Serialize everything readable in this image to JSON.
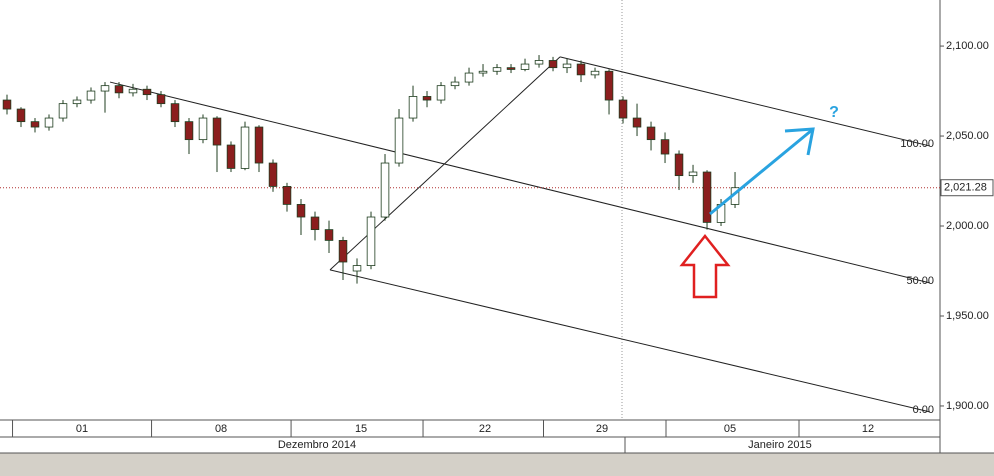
{
  "chart_data": {
    "type": "candlestick",
    "x": [
      0,
      1,
      2,
      3,
      4,
      5,
      6,
      7,
      8,
      9,
      10,
      11,
      12,
      13,
      14,
      15,
      16,
      17,
      18,
      19,
      20,
      21,
      22,
      23,
      24,
      25,
      26,
      27,
      28,
      29,
      30,
      31,
      32,
      33,
      34,
      35,
      36,
      37,
      38,
      39,
      40,
      41,
      42,
      43,
      44,
      45,
      46,
      47,
      48,
      49,
      50,
      51,
      52
    ],
    "open": [
      2070,
      2065,
      2058,
      2055,
      2060,
      2068,
      2070,
      2075,
      2078,
      2074,
      2076,
      2073,
      2068,
      2058,
      2048,
      2060,
      2045,
      2032,
      2055,
      2035,
      2022,
      2012,
      2005,
      1998,
      1992,
      1975,
      1978,
      2005,
      2035,
      2060,
      2072,
      2070,
      2078,
      2080,
      2085,
      2086,
      2088,
      2087,
      2090,
      2092,
      2088,
      2090,
      2084,
      2086,
      2070,
      2060,
      2055,
      2048,
      2040,
      2028,
      2030,
      2002,
      2012
    ],
    "high": [
      2073,
      2066,
      2060,
      2062,
      2070,
      2072,
      2077,
      2080,
      2080,
      2079,
      2078,
      2075,
      2070,
      2060,
      2062,
      2061,
      2047,
      2058,
      2056,
      2037,
      2024,
      2015,
      2008,
      2003,
      1994,
      1982,
      2008,
      2040,
      2065,
      2078,
      2075,
      2080,
      2083,
      2088,
      2090,
      2090,
      2090,
      2093,
      2095,
      2094,
      2093,
      2092,
      2088,
      2087,
      2072,
      2068,
      2058,
      2052,
      2042,
      2034,
      2031,
      2015,
      2030
    ],
    "low": [
      2062,
      2055,
      2052,
      2053,
      2058,
      2066,
      2068,
      2063,
      2071,
      2072,
      2070,
      2066,
      2055,
      2040,
      2046,
      2030,
      2030,
      2031,
      2030,
      2019,
      2008,
      1995,
      1992,
      1985,
      1970,
      1968,
      1976,
      2003,
      2033,
      2058,
      2066,
      2068,
      2076,
      2078,
      2083,
      2084,
      2085,
      2086,
      2088,
      2086,
      2085,
      2080,
      2082,
      2062,
      2057,
      2050,
      2042,
      2035,
      2020,
      2024,
      1998,
      2000,
      2010
    ],
    "close": [
      2065,
      2058,
      2055,
      2060,
      2068,
      2070,
      2075,
      2078,
      2074,
      2076,
      2073,
      2068,
      2058,
      2048,
      2060,
      2045,
      2032,
      2055,
      2035,
      2022,
      2012,
      2005,
      1998,
      1992,
      1980,
      1978,
      2005,
      2035,
      2060,
      2072,
      2070,
      2078,
      2080,
      2085,
      2086,
      2088,
      2087,
      2090,
      2092,
      2088,
      2090,
      2084,
      2086,
      2070,
      2060,
      2055,
      2048,
      2040,
      2028,
      2030,
      2002,
      2012,
      2021.28
    ],
    "up_color": "#ffffff",
    "down_color": "#8b1e1e",
    "outline_color": "#1f3d1f",
    "xlim": [
      -0.5,
      66.64
    ],
    "ylim": [
      1892.2,
      2125.6
    ],
    "yticks": [
      {
        "value": 1900,
        "label": "1,900.00"
      },
      {
        "value": 1950,
        "label": "1,950.00"
      },
      {
        "value": 2000,
        "label": "2,000.00"
      },
      {
        "value": 2050,
        "label": "2,050.00"
      },
      {
        "value": 2100,
        "label": "2,100.00"
      }
    ],
    "xticks": [
      {
        "value": 5.36,
        "label": "01"
      },
      {
        "value": 15.29,
        "label": "08"
      },
      {
        "value": 25.29,
        "label": "15"
      },
      {
        "value": 34.14,
        "label": "22"
      },
      {
        "value": 42.5,
        "label": "29"
      },
      {
        "value": 51.64,
        "label": "05"
      },
      {
        "value": 61.5,
        "label": "12"
      }
    ],
    "xticks_secondary": [
      {
        "value": 22.14,
        "label": "Dezembro 2014"
      },
      {
        "value": 55.21,
        "label": "Janeiro 2015"
      }
    ],
    "last_price": {
      "value": 2021.28,
      "label": "2,021.28"
    },
    "handle": {
      "start": [
        23.07,
        1975.6
      ],
      "end": [
        39.5,
        2094.0
      ]
    },
    "channel_lines": [
      {
        "label": "100.00",
        "start": [
          39.5,
          2094.0
        ],
        "end": [
          65.9,
          2044.5
        ]
      },
      {
        "label": "50.00",
        "start": [
          7.36,
          2080.0
        ],
        "end": [
          65.9,
          1968.4
        ]
      },
      {
        "label": "0.00",
        "start": [
          23.07,
          1975.6
        ],
        "end": [
          65.9,
          1896.7
        ]
      }
    ],
    "annotation_text": "?"
  }
}
